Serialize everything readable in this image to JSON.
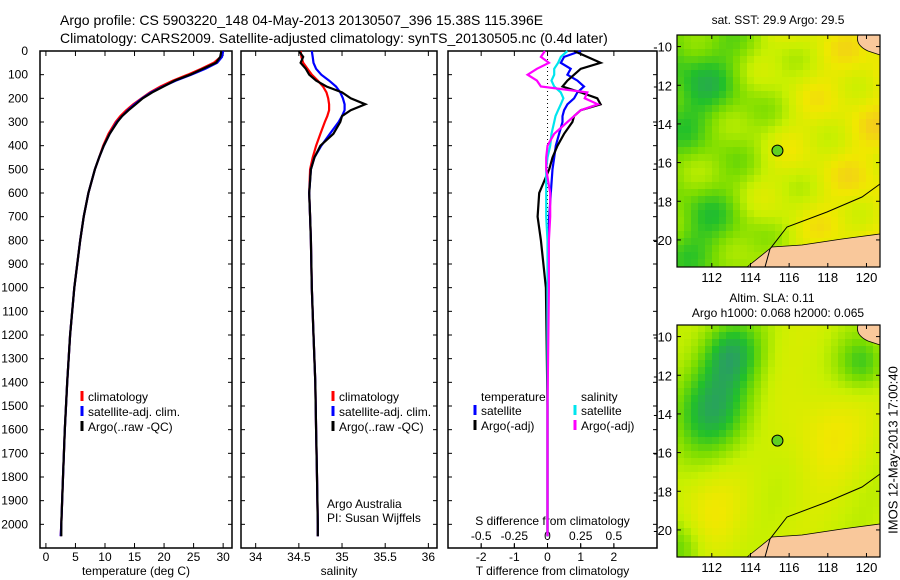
{
  "header": {
    "line1": "Argo profile: CS 5903220_148 04-May-2013 20130507_396 15.38S 115.396E",
    "line2": "Climatology: CARS2009. Satellite-adjusted climatology: synTS_20130505.nc (0.4d later)"
  },
  "footer_stamp": "IMOS 12-May-2013 17:00:40",
  "colors": {
    "climatology": "#ff0000",
    "satellite": "#0000ff",
    "argo": "#000000",
    "sal_satellite": "#00e5ee",
    "sal_argo": "#ff00ff",
    "land": "#f9c89b"
  },
  "chart_data": [
    {
      "type": "line",
      "title": "",
      "xlabel": "temperature (deg C)",
      "ylabel": "depth",
      "xlim": [
        -1,
        31.5
      ],
      "ylim": [
        0,
        2100
      ],
      "xticks": [
        "0",
        "5",
        "10",
        "15",
        "20",
        "25",
        "30"
      ],
      "yticks": [
        "0",
        "100",
        "200",
        "300",
        "400",
        "500",
        "600",
        "700",
        "800",
        "900",
        "1000",
        "1100",
        "1200",
        "1300",
        "1400",
        "1500",
        "1600",
        "1700",
        "1800",
        "1900",
        "2000"
      ],
      "legend": [
        "climatology",
        "satellite-adj. clim.",
        "Argo(..raw -QC)"
      ],
      "legend_placement": "lower-center",
      "depth": [
        0,
        25,
        50,
        75,
        100,
        125,
        150,
        175,
        200,
        225,
        250,
        275,
        300,
        350,
        400,
        450,
        500,
        600,
        700,
        800,
        1000,
        1200,
        1400,
        1600,
        1800,
        2000,
        2050
      ],
      "series": [
        {
          "name": "climatology",
          "values": [
            29.8,
            29.6,
            28.4,
            26.3,
            24,
            21.5,
            19.4,
            17.6,
            16.2,
            14.8,
            13.6,
            12.6,
            11.8,
            10.6,
            9.7,
            9,
            8.3,
            7.2,
            6.4,
            5.8,
            4.8,
            4.1,
            3.6,
            3.2,
            2.9,
            2.6,
            2.5
          ]
        },
        {
          "name": "satellite-adj. clim.",
          "values": [
            30,
            29.8,
            29,
            27,
            24.6,
            22,
            19.8,
            17.8,
            16.3,
            15,
            13.9,
            12.9,
            12,
            10.8,
            9.8,
            9,
            8.3,
            7.2,
            6.4,
            5.8,
            4.8,
            4.1,
            3.6,
            3.2,
            2.9,
            2.6,
            2.5
          ]
        },
        {
          "name": "Argo(..raw -QC)",
          "values": [
            29.7,
            29.5,
            28.8,
            26.6,
            24.4,
            21.8,
            19.9,
            18,
            16.4,
            15.2,
            14,
            12.9,
            12.1,
            10.8,
            9.8,
            9,
            8.3,
            7.2,
            6.4,
            5.8,
            4.8,
            4.1,
            3.6,
            3.2,
            2.9,
            2.6,
            2.6
          ]
        }
      ]
    },
    {
      "type": "line",
      "xlabel": "salinity",
      "xlim": [
        33.83,
        36.1
      ],
      "ylim": [
        0,
        2100
      ],
      "xticks": [
        "34",
        "34.5",
        "35",
        "35.5",
        "36"
      ],
      "legend": [
        "climatology",
        "satellite-adj. clim.",
        "Argo(..raw -QC)"
      ],
      "annotation": [
        "Argo Australia",
        "PI: Susan Wijffels"
      ],
      "depth": [
        0,
        25,
        50,
        75,
        100,
        125,
        150,
        175,
        200,
        225,
        250,
        275,
        300,
        350,
        400,
        450,
        500,
        600,
        700,
        800,
        1000,
        1200,
        1400,
        1600,
        1800,
        2000,
        2050
      ],
      "series": [
        {
          "name": "climatology",
          "values": [
            34.52,
            34.53,
            34.55,
            34.6,
            34.65,
            34.72,
            34.78,
            34.82,
            34.84,
            34.85,
            34.85,
            34.83,
            34.8,
            34.75,
            34.7,
            34.66,
            34.63,
            34.62,
            34.63,
            34.64,
            34.65,
            34.67,
            34.69,
            34.7,
            34.71,
            34.72,
            34.72
          ]
        },
        {
          "name": "satellite-adj. clim.",
          "values": [
            34.65,
            34.66,
            34.67,
            34.7,
            34.76,
            34.85,
            34.93,
            34.98,
            35.01,
            35.03,
            35.03,
            35.0,
            34.96,
            34.86,
            34.76,
            34.68,
            34.64,
            34.62,
            34.63,
            34.64,
            34.65,
            34.67,
            34.69,
            34.7,
            34.71,
            34.72,
            34.72
          ]
        },
        {
          "name": "Argo(..raw -QC)",
          "values": [
            34.5,
            34.55,
            34.52,
            34.58,
            34.62,
            34.7,
            34.82,
            35.0,
            35.1,
            35.27,
            35.1,
            35.0,
            34.98,
            34.9,
            34.75,
            34.68,
            34.64,
            34.62,
            34.63,
            34.64,
            34.65,
            34.67,
            34.69,
            34.7,
            34.71,
            34.72,
            34.72
          ]
        }
      ]
    },
    {
      "type": "line",
      "xlabel": "T difference from climatology",
      "xlabel2": "S difference from climatology",
      "xlim": [
        -3,
        3.3
      ],
      "xlim_salinity": [
        -0.75,
        0.825
      ],
      "ylim": [
        0,
        2100
      ],
      "xticks": [
        "-2",
        "-1",
        "0",
        "1",
        "2"
      ],
      "xticks_salinity": [
        "-0.5",
        "-0.25",
        "0",
        "0.25",
        "0.5"
      ],
      "legend_headers": [
        "temperature",
        "salinity"
      ],
      "legend": [
        "satellite",
        "Argo(-adj)",
        "satellite",
        "Argo(-adj)"
      ],
      "depth": [
        0,
        25,
        50,
        75,
        100,
        125,
        150,
        175,
        200,
        225,
        250,
        275,
        300,
        350,
        400,
        450,
        500,
        600,
        700,
        800,
        1000,
        1500,
        2050
      ],
      "series": [
        {
          "name": "temperature satellite",
          "var": "T",
          "values": [
            1.0,
            0.5,
            0.4,
            0.7,
            0.6,
            0.9,
            1.1,
            0.9,
            0.8,
            0.6,
            0.5,
            0.45,
            0.45,
            0.35,
            0.25,
            0.2,
            0.15,
            0.1,
            0.05,
            0.03,
            0,
            0,
            0
          ]
        },
        {
          "name": "temperature Argo(-adj)",
          "var": "T",
          "values": [
            0.8,
            1.2,
            1.6,
            1.0,
            0.8,
            0.6,
            0.45,
            1.0,
            1.5,
            1.6,
            1.0,
            0.8,
            0.75,
            0.5,
            0.3,
            0.15,
            0.05,
            -0.25,
            -0.3,
            -0.2,
            -0.05,
            0,
            0
          ]
        },
        {
          "name": "salinity satellite",
          "var": "S",
          "values": [
            0.15,
            0.1,
            0.08,
            0.05,
            0.05,
            0.03,
            0.05,
            0.1,
            0.12,
            0.1,
            0.08,
            0.06,
            0.05,
            0.03,
            0.02,
            0.0,
            -0.01,
            -0.01,
            -0.01,
            0,
            0,
            0,
            0
          ]
        },
        {
          "name": "salinity Argo(-adj)",
          "var": "S",
          "values": [
            -0.02,
            -0.05,
            0.01,
            -0.08,
            -0.15,
            -0.08,
            -0.05,
            0.3,
            0.28,
            0.38,
            0.25,
            0.2,
            0.15,
            0.05,
            0.0,
            -0.01,
            -0.01,
            0.02,
            0.02,
            0.01,
            0.01,
            0,
            0
          ]
        }
      ]
    },
    {
      "type": "heatmap",
      "title": "sat. SST: 29.9 Argo: 29.5",
      "xlim": [
        110.2,
        120.7
      ],
      "ylim": [
        -21.4,
        -9.4
      ],
      "xticks": [
        "112",
        "114",
        "116",
        "118",
        "120"
      ],
      "yticks": [
        "-10",
        "-12",
        "-14",
        "-16",
        "-18",
        "-20"
      ],
      "marker": {
        "lon": 115.396,
        "lat": -15.38
      }
    },
    {
      "type": "heatmap",
      "title": "Altim. SLA: 0.11",
      "subtitle": "Argo h1000: 0.068 h2000: 0.065",
      "xlim": [
        110.2,
        120.7
      ],
      "ylim": [
        -21.4,
        -9.4
      ],
      "xticks": [
        "112",
        "114",
        "116",
        "118",
        "120"
      ],
      "yticks": [
        "-10",
        "-12",
        "-14",
        "-16",
        "-18",
        "-20"
      ],
      "marker": {
        "lon": 115.396,
        "lat": -15.38
      }
    }
  ]
}
